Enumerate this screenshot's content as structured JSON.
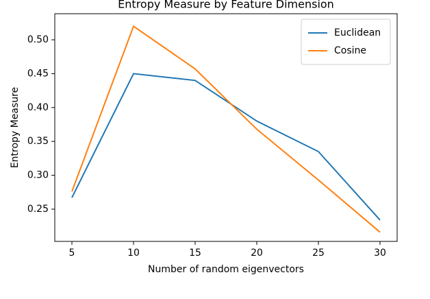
{
  "chart_data": {
    "type": "line",
    "title": "Entropy Measure by Feature Dimension",
    "x_label": "Number of random eigenvectors",
    "y_label": "Entropy Measure",
    "x": [
      5,
      10,
      15,
      20,
      25,
      30
    ],
    "series": [
      {
        "name": "Euclidean",
        "color": "#1f77b4",
        "values": [
          0.267,
          0.45,
          0.44,
          0.38,
          0.335,
          0.234
        ]
      },
      {
        "name": "Cosine",
        "color": "#ff7f0e",
        "values": [
          0.276,
          0.52,
          0.457,
          0.368,
          0.293,
          0.216
        ]
      }
    ],
    "xlim": [
      3.61,
      31.39
    ],
    "xticks": [
      5,
      10,
      15,
      20,
      25,
      30
    ],
    "ylim": [
      0.2024,
      0.5385
    ],
    "yticks": [
      0.25,
      {
        "value": 0.3,
        "label": "0.30"
      },
      0.35,
      {
        "value": 0.4,
        "label": "0.40"
      },
      0.45,
      {
        "value": 0.5,
        "label": "0.50"
      }
    ],
    "legend": "upper right"
  }
}
